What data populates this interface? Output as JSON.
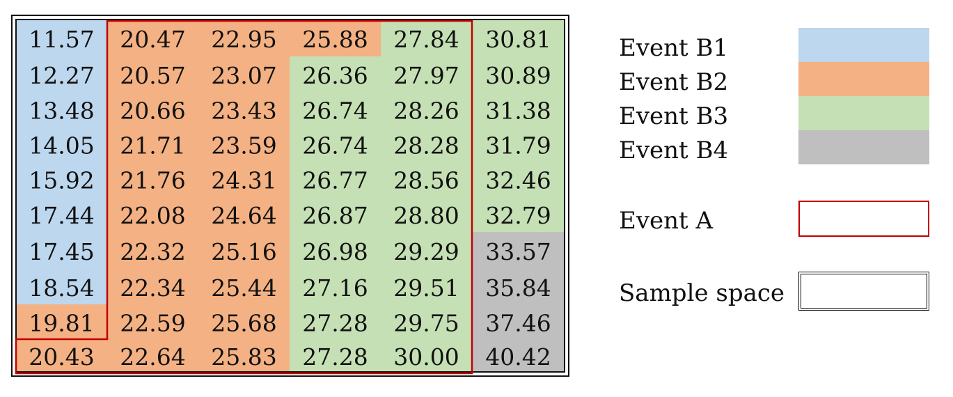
{
  "grid": {
    "columns": [
      [
        "11.57",
        "12.27",
        "13.48",
        "14.05",
        "15.92",
        "17.44",
        "17.45",
        "18.54",
        "19.81",
        "20.43"
      ],
      [
        "20.47",
        "20.57",
        "20.66",
        "21.71",
        "21.76",
        "22.08",
        "22.32",
        "22.34",
        "22.59",
        "22.64"
      ],
      [
        "22.95",
        "23.07",
        "23.43",
        "23.59",
        "24.31",
        "24.64",
        "25.16",
        "25.44",
        "25.68",
        "25.83"
      ],
      [
        "25.88",
        "26.36",
        "26.74",
        "26.74",
        "26.77",
        "26.87",
        "26.98",
        "27.16",
        "27.28",
        "27.28"
      ],
      [
        "27.84",
        "27.97",
        "28.26",
        "28.28",
        "28.56",
        "28.80",
        "29.29",
        "29.51",
        "29.75",
        "30.00"
      ],
      [
        "30.81",
        "30.89",
        "31.38",
        "31.79",
        "32.46",
        "32.79",
        "33.57",
        "35.84",
        "37.46",
        "40.42"
      ]
    ],
    "events": [
      [
        "B1",
        "B1",
        "B1",
        "B1",
        "B1",
        "B1",
        "B1",
        "B1",
        "B2",
        "B2"
      ],
      [
        "B2",
        "B2",
        "B2",
        "B2",
        "B2",
        "B2",
        "B2",
        "B2",
        "B2",
        "B2"
      ],
      [
        "B2",
        "B2",
        "B2",
        "B2",
        "B2",
        "B2",
        "B2",
        "B2",
        "B2",
        "B2"
      ],
      [
        "B2",
        "B3",
        "B3",
        "B3",
        "B3",
        "B3",
        "B3",
        "B3",
        "B3",
        "B3"
      ],
      [
        "B3",
        "B3",
        "B3",
        "B3",
        "B3",
        "B3",
        "B3",
        "B3",
        "B3",
        "B3"
      ],
      [
        "B3",
        "B3",
        "B3",
        "B3",
        "B3",
        "B3",
        "B4",
        "B4",
        "B4",
        "B4"
      ]
    ]
  },
  "colors": {
    "B1": "#bdd7ee",
    "B2": "#f4b183",
    "B3": "#c5e0b4",
    "B4": "#bfbfbf",
    "eventA_border": "#c00000",
    "sample_border": "#111111"
  },
  "legend": {
    "b1_label": "Event B1",
    "b2_label": "Event B2",
    "b3_label": "Event B3",
    "b4_label": "Event B4",
    "eventA_label": "Event A",
    "sample_label": "Sample space"
  }
}
